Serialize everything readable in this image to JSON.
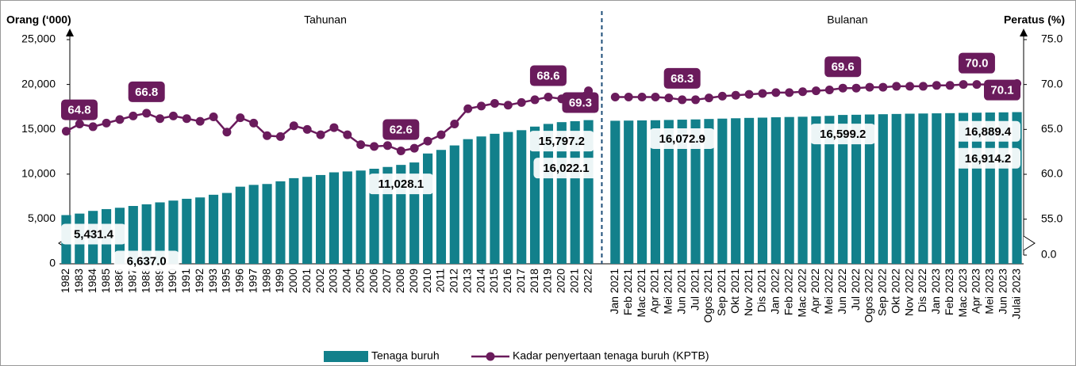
{
  "chart_data": {
    "type": "bar_line",
    "left_axis_title": "Orang (‘000)",
    "right_axis_title": "Peratus (%)",
    "sections": [
      "Tahunan",
      "Bulanan"
    ],
    "categories": [
      "1982",
      "1983",
      "1984",
      "1985",
      "1986",
      "1987",
      "1988",
      "1989",
      "1990",
      "1991",
      "1992",
      "1993",
      "1995",
      "1996",
      "1997",
      "1998",
      "1999",
      "2000",
      "2001",
      "2002",
      "2003",
      "2004",
      "2005",
      "2006",
      "2007",
      "2008",
      "2009",
      "2010",
      "2011",
      "2012",
      "2013",
      "2014",
      "2015",
      "2016",
      "2017",
      "2018",
      "2019",
      "2020",
      "2021",
      "2022",
      "Jan 2021",
      "Feb 2021",
      "Mac 2021",
      "Apr 2021",
      "Mei 2021",
      "Jun 2021",
      "Jul 2021",
      "Ogos 2021",
      "Sep 2021",
      "Okt 2021",
      "Nov 2021",
      "Dis 2021",
      "Jan 2022",
      "Feb 2022",
      "Mac 2022",
      "Apr 2022",
      "Mei 2022",
      "Jun 2022",
      "Jul 2022",
      "Ogos 2022",
      "Sep 2022",
      "Okt 2022",
      "Nov 2022",
      "Dis 2022",
      "Jan 2023",
      "Feb 2023",
      "Mac 2023",
      "Apr 2023",
      "Mei 2023",
      "Jun 2023",
      "Julai 2023"
    ],
    "series": [
      {
        "name": "Tenaga buruh",
        "type": "bar",
        "color": "#12808b",
        "values": [
          5431.4,
          5600,
          5900,
          6100,
          6250,
          6450,
          6637.0,
          6850,
          7050,
          7250,
          7400,
          7700,
          7900,
          8600,
          8800,
          8900,
          9200,
          9550,
          9700,
          9900,
          10200,
          10300,
          10400,
          10600,
          10800,
          11028.1,
          11300,
          12300,
          12700,
          13200,
          13900,
          14200,
          14500,
          14700,
          14900,
          15300,
          15600,
          15797.2,
          15900,
          16022.1,
          15950,
          15970,
          15990,
          16010,
          16040,
          16072.9,
          16100,
          16150,
          16190,
          16230,
          16270,
          16300,
          16340,
          16370,
          16400,
          16450,
          16500,
          16599.2,
          16620,
          16650,
          16680,
          16710,
          16740,
          16760,
          16780,
          16800,
          16830,
          16850,
          16870,
          16889.4,
          16914.2
        ],
        "value_labels": [
          "5,431.4",
          null,
          null,
          null,
          null,
          null,
          "6,637.0",
          null,
          null,
          null,
          null,
          null,
          null,
          null,
          null,
          null,
          null,
          null,
          null,
          null,
          null,
          null,
          null,
          null,
          null,
          "11,028.1",
          null,
          null,
          null,
          null,
          null,
          null,
          null,
          null,
          null,
          null,
          null,
          "15,797.2",
          null,
          "16,022.1",
          null,
          null,
          null,
          null,
          null,
          "16,072.9",
          null,
          null,
          null,
          null,
          null,
          null,
          null,
          null,
          null,
          null,
          null,
          "16,599.2",
          null,
          null,
          null,
          null,
          null,
          null,
          null,
          null,
          null,
          null,
          null,
          "16,889.4",
          "16,914.2"
        ]
      },
      {
        "name": "Kadar penyertaan tenaga buruh (KPTB)",
        "type": "line",
        "axis": "y2",
        "color": "#6a1b5c",
        "values": [
          64.8,
          65.6,
          65.3,
          65.7,
          66.1,
          66.5,
          66.8,
          66.2,
          66.5,
          66.2,
          65.9,
          66.4,
          64.7,
          66.3,
          65.7,
          64.3,
          64.2,
          65.4,
          65.0,
          64.4,
          65.2,
          64.4,
          63.3,
          63.1,
          63.2,
          62.6,
          62.9,
          63.7,
          64.4,
          65.6,
          67.3,
          67.6,
          67.9,
          67.7,
          68.0,
          68.3,
          68.6,
          68.4,
          68.6,
          69.3,
          68.6,
          68.6,
          68.6,
          68.6,
          68.5,
          68.3,
          68.3,
          68.5,
          68.7,
          68.8,
          68.9,
          69.0,
          69.1,
          69.1,
          69.2,
          69.3,
          69.4,
          69.6,
          69.6,
          69.7,
          69.7,
          69.8,
          69.8,
          69.8,
          69.9,
          69.9,
          70.0,
          70.0,
          70.0,
          70.0,
          70.1
        ],
        "value_labels": [
          "64.8",
          null,
          null,
          null,
          null,
          null,
          "66.8",
          null,
          null,
          null,
          null,
          null,
          null,
          null,
          null,
          null,
          null,
          null,
          null,
          null,
          null,
          null,
          null,
          null,
          null,
          "62.6",
          null,
          null,
          null,
          null,
          null,
          null,
          null,
          null,
          null,
          null,
          "68.6",
          null,
          null,
          "69.3",
          null,
          null,
          null,
          null,
          null,
          "68.3",
          null,
          null,
          null,
          null,
          null,
          null,
          null,
          null,
          null,
          null,
          null,
          "69.6",
          null,
          null,
          null,
          null,
          null,
          null,
          null,
          null,
          null,
          "70.0",
          null,
          null,
          "70.1"
        ]
      }
    ],
    "ylim": [
      0,
      25000
    ],
    "yticks": [
      0,
      {
        "value": 5000,
        "label": "5,000"
      },
      {
        "value": 10000,
        "label": "10,000"
      },
      {
        "value": 15000,
        "label": "15,000"
      },
      {
        "value": 20000,
        "label": "20,000"
      },
      {
        "value": 25000,
        "label": "25,000"
      }
    ],
    "y2lim": [
      0,
      75
    ],
    "y2_break": [
      0,
      51
    ],
    "y2ticks": [
      {
        "value": 0,
        "label": "0.0"
      },
      {
        "value": 55,
        "label": "55.0"
      },
      {
        "value": 60,
        "label": "60.0"
      },
      {
        "value": 65,
        "label": "65.0"
      },
      {
        "value": 70,
        "label": "70.0"
      },
      {
        "value": 75,
        "label": "75.0"
      }
    ],
    "legend": "bottom"
  }
}
